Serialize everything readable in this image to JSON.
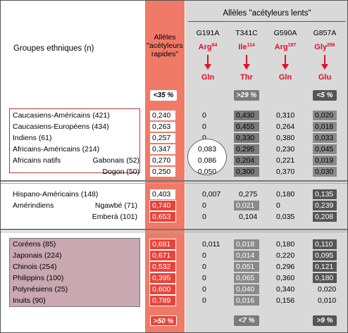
{
  "header": {
    "groups_title": "Groupes ethniques (n)",
    "rapid_title_l1": "Allèles",
    "rapid_title_l2": "\"acétyleurs",
    "rapid_title_l3": "rapides\"",
    "slow_title": "Allèles \"acétyleurs lents\""
  },
  "alleles": [
    {
      "name": "G191A",
      "from": "Arg",
      "pos": "64",
      "to": "Gln"
    },
    {
      "name": "T341C",
      "from": "Ile",
      "pos": "114",
      "to": "Thr"
    },
    {
      "name": "G590A",
      "from": "Arg",
      "pos": "197",
      "to": "Gln"
    },
    {
      "name": "G857A",
      "from": "Gly",
      "pos": "286",
      "to": "Glu"
    }
  ],
  "top_boxes": {
    "rapid": "<35 %",
    "t341c": ">29 %",
    "g857a": "<5 %"
  },
  "bottom_boxes": {
    "rapid": ">50 %",
    "t341c": "<7 %",
    "g857a": ">9 %"
  },
  "groups": [
    {
      "rows": [
        {
          "label": "Caucasiens-Américains (421)",
          "sub": "",
          "values": [
            "0,240",
            "0",
            "0,430",
            "0,310",
            "0,020"
          ]
        },
        {
          "label": "Caucasiens-Européens (434)",
          "sub": "",
          "values": [
            "0,263",
            "0",
            "0,455",
            "0,264",
            "0,018"
          ]
        },
        {
          "label": "Indiens (61)",
          "sub": "",
          "values": [
            "0,257",
            "0",
            "0,330",
            "0,380",
            "0,033"
          ]
        },
        {
          "label": "Africains-Américains (214)",
          "sub": "",
          "values": [
            "0,347",
            "0,083",
            "0,295",
            "0,230",
            "0,045"
          ]
        },
        {
          "label": "Africains natifs",
          "sub": "Gabonais (52)",
          "values": [
            "0,270",
            "0,086",
            "0,204",
            "0,221",
            "0,019"
          ]
        },
        {
          "label": "",
          "sub": "Dogon (50)",
          "values": [
            "0,250",
            "0,050",
            "0,300",
            "0,370",
            "0,030"
          ]
        }
      ]
    },
    {
      "rows": [
        {
          "label": "Hispano-Américains (148)",
          "sub": "",
          "values": [
            "0,403",
            "0,007",
            "0,275",
            "0,180",
            "0,135"
          ]
        },
        {
          "label": "Amérindiens",
          "sub": "Ngawbé (71)",
          "values": [
            "0,740",
            "0",
            "0,021",
            "0",
            "0,239"
          ]
        },
        {
          "label": "",
          "sub": "Emberà (101)",
          "values": [
            "0,653",
            "0",
            "0,104",
            "0,035",
            "0,208"
          ]
        }
      ]
    },
    {
      "rows": [
        {
          "label": "Coréens (85)",
          "sub": "",
          "values": [
            "0,681",
            "0,011",
            "0,018",
            "0,180",
            "0,110"
          ]
        },
        {
          "label": "Japonais (224)",
          "sub": "",
          "values": [
            "0,671",
            "0",
            "0,014",
            "0,220",
            "0,095"
          ]
        },
        {
          "label": "Chinois (254)",
          "sub": "",
          "values": [
            "0,532",
            "0",
            "0,051",
            "0,296",
            "0,121"
          ]
        },
        {
          "label": "Philippins (100)",
          "sub": "",
          "values": [
            "0,395",
            "0",
            "0,065",
            "0,360",
            "0,180"
          ]
        },
        {
          "label": "Polynésiens (25)",
          "sub": "",
          "values": [
            "0,600",
            "0",
            "0,040",
            "0,340",
            "0,020"
          ]
        },
        {
          "label": "Inuits (90)",
          "sub": "",
          "values": [
            "0,789",
            "0",
            "0,016",
            "0,156",
            "0,010"
          ]
        }
      ]
    }
  ]
}
